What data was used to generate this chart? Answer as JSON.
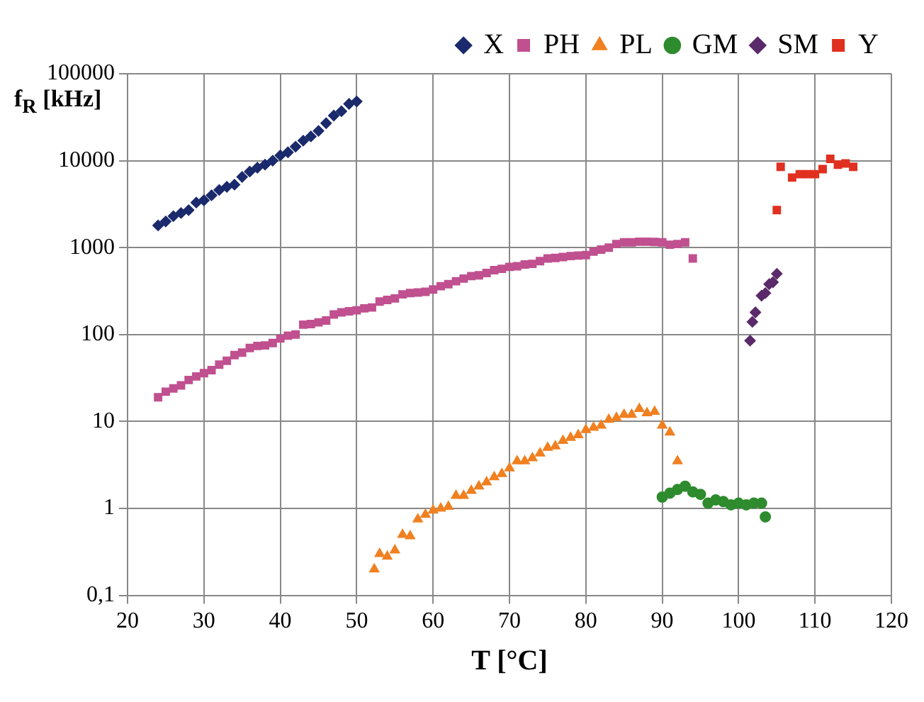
{
  "chart_data": {
    "type": "scatter",
    "xlabel": "T [°C]",
    "ylabel": "f$_{R}$ [kHz]",
    "xlim": [
      20,
      120
    ],
    "xticks": [
      20,
      30,
      40,
      50,
      60,
      70,
      80,
      90,
      100,
      110,
      120
    ],
    "ylim": [
      0.1,
      100000
    ],
    "yticks": [
      {
        "value": 0.1,
        "label": "0,1"
      },
      1,
      10,
      100,
      1000,
      10000,
      100000
    ],
    "log": "y",
    "grid": true,
    "legend": "top right",
    "series": [
      {
        "name": "X",
        "color": "#1a2a6c",
        "marker": "diamond",
        "x": [
          24,
          25,
          26,
          27,
          28,
          29,
          30,
          31,
          32,
          33,
          34,
          35,
          36,
          37,
          38,
          39,
          40,
          41,
          42,
          43,
          44,
          45,
          46,
          47,
          48,
          49,
          50
        ],
        "values": [
          1800,
          2000,
          2300,
          2500,
          2700,
          3300,
          3500,
          4000,
          4600,
          5000,
          5300,
          6500,
          7500,
          8300,
          9000,
          10000,
          11500,
          12500,
          14500,
          17000,
          19000,
          22000,
          27000,
          33000,
          37000,
          45000,
          48000
        ]
      },
      {
        "name": "PH",
        "color": "#c0508f",
        "marker": "square",
        "x": [
          24,
          25,
          26,
          27,
          28,
          29,
          30,
          31,
          32,
          33,
          34,
          35,
          36,
          37,
          38,
          39,
          40,
          41,
          42,
          43,
          44,
          45,
          46,
          47,
          48,
          49,
          50,
          51,
          52,
          53,
          54,
          55,
          56,
          57,
          58,
          59,
          60,
          61,
          62,
          63,
          64,
          65,
          66,
          67,
          68,
          69,
          70,
          71,
          72,
          73,
          74,
          75,
          76,
          77,
          78,
          79,
          80,
          81,
          82,
          83,
          84,
          85,
          86,
          87,
          88,
          89,
          90,
          91,
          92,
          93,
          94
        ],
        "values": [
          19,
          22,
          24,
          26,
          30,
          33,
          36,
          39,
          45,
          50,
          58,
          62,
          70,
          74,
          75,
          80,
          90,
          97,
          100,
          130,
          132,
          138,
          145,
          170,
          180,
          185,
          190,
          200,
          205,
          240,
          250,
          260,
          290,
          300,
          305,
          310,
          330,
          360,
          380,
          410,
          440,
          470,
          480,
          510,
          550,
          570,
          600,
          610,
          640,
          650,
          700,
          750,
          760,
          780,
          800,
          810,
          820,
          900,
          950,
          1000,
          1100,
          1150,
          1150,
          1170,
          1170,
          1160,
          1150,
          1080,
          1100,
          1150,
          750
        ]
      },
      {
        "name": "PL",
        "color": "#f08020",
        "marker": "triangle",
        "x": [
          52.3,
          53,
          54,
          55,
          56,
          57,
          58,
          59,
          60,
          61,
          62,
          63,
          64,
          65,
          66,
          67,
          68,
          69,
          70,
          71,
          72,
          73,
          74,
          75,
          76,
          77,
          78,
          79,
          80,
          81,
          82,
          83,
          84,
          85,
          86,
          87,
          88,
          89,
          90,
          91,
          92
        ],
        "values": [
          0.2,
          0.3,
          0.28,
          0.33,
          0.5,
          0.48,
          0.75,
          0.85,
          0.95,
          1.0,
          1.05,
          1.4,
          1.4,
          1.6,
          1.8,
          2.0,
          2.3,
          2.5,
          2.9,
          3.5,
          3.5,
          3.8,
          4.3,
          5,
          5.2,
          6,
          6.5,
          7,
          8,
          8.5,
          9,
          10.5,
          11,
          12,
          12,
          14,
          12.5,
          13,
          9,
          7.5,
          3.5
        ]
      },
      {
        "name": "GM",
        "color": "#2e8b2e",
        "marker": "circle",
        "x": [
          90,
          91,
          92,
          93,
          94,
          95,
          96,
          97,
          98,
          99,
          100,
          101,
          102,
          103,
          103.5
        ],
        "values": [
          1.35,
          1.5,
          1.65,
          1.8,
          1.55,
          1.45,
          1.15,
          1.25,
          1.2,
          1.1,
          1.15,
          1.1,
          1.15,
          1.15,
          0.8
        ]
      },
      {
        "name": "SM",
        "color": "#5a2a6a",
        "marker": "diamond",
        "x": [
          101.5,
          101.8,
          102.2,
          103,
          103.5,
          104,
          104.5,
          105
        ],
        "values": [
          85,
          140,
          180,
          280,
          300,
          380,
          400,
          500
        ]
      },
      {
        "name": "Y",
        "color": "#e03020",
        "marker": "square",
        "x": [
          105,
          105.5,
          107,
          108,
          109,
          110,
          111,
          112,
          113,
          114,
          115
        ],
        "values": [
          2700,
          8500,
          6400,
          7000,
          7000,
          7000,
          8000,
          10500,
          9000,
          9300,
          8500
        ]
      }
    ]
  }
}
